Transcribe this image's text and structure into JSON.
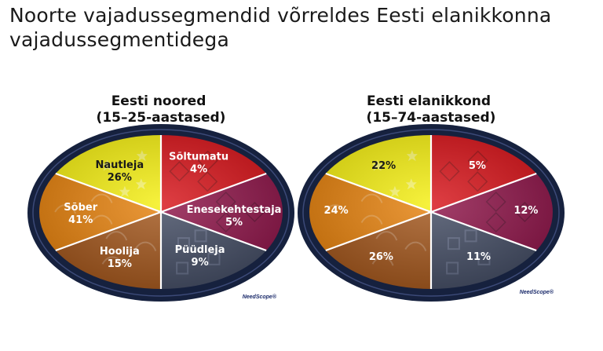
{
  "page": {
    "title": "Noorte vajadussegmendid võrreldes Eesti elanikkonna\nvajadussegmentidega",
    "brand": "NeedScope®"
  },
  "colors": {
    "rim": "#16213e",
    "yellow": "#f5ef12",
    "red": "#d7141a",
    "magenta": "#8e1549",
    "slate": "#434c63",
    "orange": "#e6820e",
    "brown": "#a2561c"
  },
  "chart_data": [
    {
      "type": "pie",
      "title": "Eesti noored\n(15–25-aastased)",
      "slices": [
        {
          "label": "Sõltumatu",
          "value": 4,
          "value_text": "4%",
          "color": "red"
        },
        {
          "label": "Enesekehtestaja",
          "value": 5,
          "value_text": "5%",
          "color": "magenta"
        },
        {
          "label": "Püüdleja",
          "value": 9,
          "value_text": "9%",
          "color": "slate"
        },
        {
          "label": "Hoolija",
          "value": 15,
          "value_text": "15%",
          "color": "brown"
        },
        {
          "label": "Sõber",
          "value": 41,
          "value_text": "41%",
          "color": "orange"
        },
        {
          "label": "Nautleja",
          "value": 26,
          "value_text": "26%",
          "color": "yellow"
        }
      ]
    },
    {
      "type": "pie",
      "title": "Eesti elanikkond\n(15–74-aastased)",
      "slices": [
        {
          "label": "",
          "value": 5,
          "value_text": "5%",
          "color": "red"
        },
        {
          "label": "",
          "value": 12,
          "value_text": "12%",
          "color": "magenta"
        },
        {
          "label": "",
          "value": 11,
          "value_text": "11%",
          "color": "slate"
        },
        {
          "label": "",
          "value": 26,
          "value_text": "26%",
          "color": "brown"
        },
        {
          "label": "",
          "value": 24,
          "value_text": "24%",
          "color": "orange"
        },
        {
          "label": "",
          "value": 22,
          "value_text": "22%",
          "color": "yellow"
        }
      ]
    }
  ]
}
